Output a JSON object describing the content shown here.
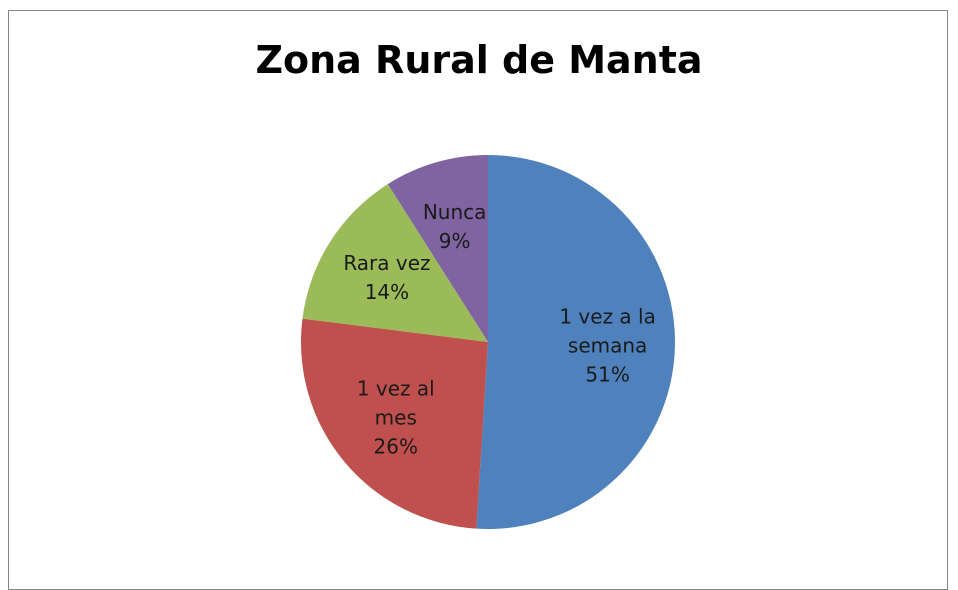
{
  "chart_data": {
    "type": "pie",
    "title": "Zona Rural de Manta",
    "categories": [
      "1 vez a la semana",
      "1 vez al mes",
      "Rara vez",
      "Nunca"
    ],
    "values": [
      51,
      26,
      14,
      9
    ],
    "value_labels": [
      "51%",
      "26%",
      "14%",
      "9%"
    ],
    "colors": [
      "#4f81bd",
      "#c0504d",
      "#9bbb59",
      "#8064a2"
    ]
  }
}
